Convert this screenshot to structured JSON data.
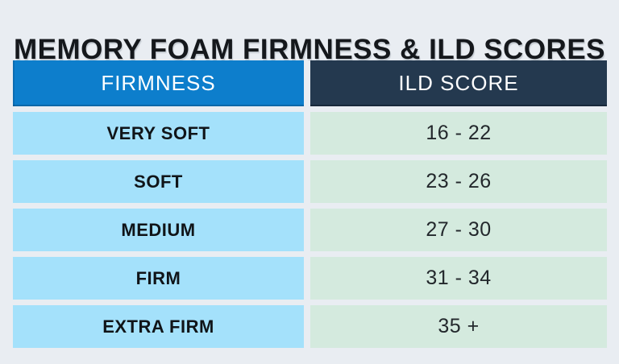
{
  "title": "MEMORY FOAM FIRMNESS & ILD SCORES",
  "colors": {
    "page_bg": "#e9edf2",
    "title_text": "#15181c",
    "header_firmness_bg": "#0d7ecc",
    "header_ild_bg": "#24394f",
    "header_text": "#ffffff",
    "row_firmness_bg": "#a4e1fb",
    "row_ild_bg": "#d4eade",
    "row_firmness_text": "#101418",
    "row_ild_text": "#23282c"
  },
  "chart_data": {
    "type": "table",
    "title": "MEMORY FOAM FIRMNESS & ILD SCORES",
    "columns": [
      "FIRMNESS",
      "ILD SCORE"
    ],
    "rows": [
      [
        "VERY SOFT",
        "16 - 22"
      ],
      [
        "SOFT",
        "23 - 26"
      ],
      [
        "MEDIUM",
        "27 - 30"
      ],
      [
        "FIRM",
        "31 - 34"
      ],
      [
        "EXTRA FIRM",
        "35 +"
      ]
    ]
  }
}
